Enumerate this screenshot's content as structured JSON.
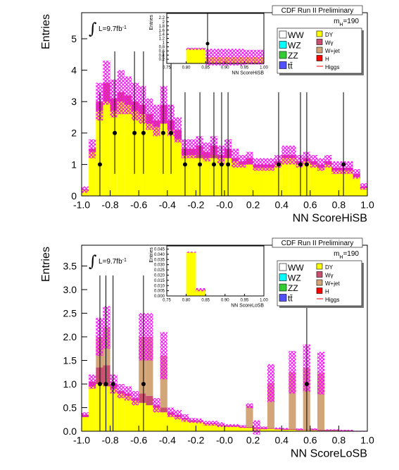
{
  "chart_data": [
    {
      "type": "histogram",
      "header": "CDF Run II Preliminary",
      "mass_label": {
        "base": "m",
        "sub": "H",
        "rest": "=190"
      },
      "lumi_symbol": "∫",
      "lumi_label": {
        "base": "L=9.7fb",
        "sup": "-1"
      },
      "xlabel": "NN ScoreHiSB",
      "ylabel": "Entries",
      "legend": "upper right",
      "xlim": [
        -1,
        1
      ],
      "ylim": [
        0,
        5.83
      ],
      "xticks": [
        {
          "value": -1,
          "label": "-1.0"
        },
        -0.8,
        -0.6,
        -0.4,
        -0.2,
        {
          "value": 0,
          "label": "-0.0"
        },
        0.2,
        0.4,
        0.6,
        0.8,
        {
          "value": 1,
          "label": "1.0"
        }
      ],
      "yticks": [
        0,
        1,
        2,
        3,
        4,
        5
      ],
      "bins": [
        -1,
        -0.95,
        -0.9,
        -0.85,
        -0.8,
        -0.75,
        -0.7,
        -0.65,
        -0.6,
        -0.55,
        -0.5,
        -0.45,
        -0.4,
        -0.35,
        -0.3,
        -0.25,
        -0.2,
        -0.15,
        -0.1,
        -0.05,
        0,
        0.05,
        0.1,
        0.15,
        0.2,
        0.25,
        0.3,
        0.35,
        0.4,
        0.45,
        0.5,
        0.55,
        0.6,
        0.65,
        0.7,
        0.75,
        0.8,
        0.85,
        0.9,
        0.95,
        1
      ],
      "series": [
        {
          "name": "WW",
          "color": "#ffffff"
        },
        {
          "name": "WZ",
          "color": "#00ffff"
        },
        {
          "name": "ZZ",
          "color": "#33cc33"
        },
        {
          "name": "tt̄",
          "color": "#5050ff"
        },
        {
          "name": "DY",
          "color": "#ffff00",
          "values": [
            0.18,
            1.4,
            2.7,
            3.0,
            2.7,
            3.0,
            2.9,
            2.7,
            2.6,
            2.3,
            2.2,
            2.3,
            2.1,
            1.8,
            1.3,
            1.3,
            1.2,
            1.2,
            1.2,
            1.2,
            1.2,
            1.1,
            1.0,
            1.0,
            0.9,
            0.9,
            0.9,
            1.0,
            1.2,
            1.2,
            1.0,
            1.1,
            1.0,
            0.9,
            1.0,
            0.8,
            0.8,
            0.8,
            0.6,
            0.25
          ]
        },
        {
          "name": "Wγ",
          "color": "#c8506e",
          "values": [
            0.02,
            0.1,
            0.3,
            0.6,
            0.4,
            0.3,
            0.3,
            0.3,
            0.3,
            0.3,
            0.2,
            0.6,
            0.3,
            0.3,
            0.2,
            0.2,
            0.4,
            0.2,
            0.4,
            0.1,
            0.3,
            0.1,
            0.1,
            0.2,
            0.1,
            0.1,
            0.1,
            0.1,
            0.1,
            0.1,
            0.1,
            0.1,
            0.1,
            0.1,
            0.1,
            0.1,
            0.1,
            0.1,
            0.1,
            0.05
          ]
        },
        {
          "name": "W+jet",
          "color": "#d2a679"
        },
        {
          "name": "H",
          "color": "#ff0000"
        },
        {
          "name": "Higgs",
          "color": "#ff0000",
          "style": "line"
        }
      ],
      "band": {
        "color": "#ff00ff",
        "values": [
          0.1,
          0.3,
          0.6,
          0.7,
          0.6,
          0.7,
          0.6,
          0.6,
          0.6,
          0.5,
          0.5,
          0.6,
          0.5,
          0.4,
          0.3,
          0.3,
          0.3,
          0.3,
          0.3,
          0.3,
          0.3,
          0.3,
          0.2,
          0.2,
          0.2,
          0.2,
          0.2,
          0.2,
          0.3,
          0.3,
          0.2,
          0.2,
          0.2,
          0.2,
          0.2,
          0.2,
          0.2,
          0.2,
          0.15,
          0.1
        ]
      },
      "points": {
        "x": [
          -0.872,
          -0.768,
          -0.63,
          -0.567,
          -0.429,
          -0.374,
          -0.276,
          -0.172,
          -0.074,
          -0.02,
          0.025,
          0.379,
          0.532,
          0.576,
          0.833
        ],
        "y": [
          1,
          2,
          2,
          2,
          2,
          2,
          1,
          1,
          1,
          1,
          1,
          1,
          1,
          1,
          1
        ],
        "err_low": [
          1,
          1.3,
          1.3,
          1.3,
          1.3,
          1.3,
          1,
          1,
          1,
          1,
          1,
          1,
          1,
          1,
          1
        ],
        "err_high": [
          2.3,
          2.6,
          2.6,
          2.6,
          2.6,
          2.6,
          2.3,
          2.3,
          2.3,
          2.3,
          2.3,
          2.3,
          2.3,
          2.3,
          2.3
        ]
      },
      "inset": {
        "type": "histogram",
        "xlabel": "NN ScoreHiSB",
        "ylabel": "Entries",
        "xlim": [
          0.75,
          1
        ],
        "ylim": [
          0,
          2.4
        ],
        "xticks": [
          0.75,
          {
            "value": 0.8,
            "label": "0.80"
          },
          0.85,
          {
            "value": 0.9,
            "label": "0.90"
          },
          0.95,
          {
            "value": 1,
            "label": "1.00"
          }
        ],
        "yticks": [
          0.2,
          0.4,
          0.6,
          0.8,
          1,
          1.2,
          1.4,
          1.6,
          1.8,
          2,
          2.2
        ],
        "bins": [
          0.75,
          0.8,
          0.85,
          0.9,
          0.95,
          1
        ],
        "series": [
          {
            "color": "#ffff00",
            "values": [
              0,
              0.7,
              0.3,
              0.3,
              0.3
            ]
          }
        ],
        "band": {
          "color": "#ff00ff",
          "values": [
            0,
            0.05,
            0.4,
            0.4,
            0.35
          ]
        },
        "points": {
          "x": [
            0.855
          ],
          "y": [
            0.95
          ],
          "err_low": [
            0.95
          ],
          "err_high": [
            1.45
          ]
        }
      }
    },
    {
      "type": "histogram",
      "header": "CDF Run II Preliminary",
      "mass_label": {
        "base": "m",
        "sub": "H",
        "rest": "=190"
      },
      "lumi_symbol": "∫",
      "lumi_label": {
        "base": "L=9.7fb",
        "sup": "-1"
      },
      "xlabel": "NN ScoreLoSB",
      "ylabel": "Entries",
      "legend": "upper right",
      "xlim": [
        -1,
        1
      ],
      "ylim": [
        0,
        3.94
      ],
      "xticks": [
        {
          "value": -1,
          "label": "-1.0"
        },
        -0.8,
        -0.6,
        -0.4,
        -0.2,
        {
          "value": 0,
          "label": "-0.0"
        },
        0.2,
        0.4,
        0.6,
        0.8,
        {
          "value": 1,
          "label": "1.0"
        }
      ],
      "yticks": [
        {
          "value": 0,
          "label": "0.0"
        },
        0.5,
        {
          "value": 1,
          "label": "1.0"
        },
        1.5,
        {
          "value": 2,
          "label": "2.0"
        },
        2.5,
        {
          "value": 3,
          "label": "3.0"
        },
        3.5
      ],
      "bins": [
        -1,
        -0.95,
        -0.9,
        -0.85,
        -0.8,
        -0.75,
        -0.7,
        -0.65,
        -0.6,
        -0.55,
        -0.5,
        -0.45,
        -0.4,
        -0.35,
        -0.3,
        -0.25,
        -0.2,
        -0.15,
        -0.1,
        -0.05,
        0,
        0.05,
        0.1,
        0.15,
        0.2,
        0.25,
        0.3,
        0.35,
        0.4,
        0.45,
        0.5,
        0.55,
        0.6,
        0.65,
        0.7,
        0.75,
        0.8,
        0.85,
        0.9,
        0.95,
        1
      ],
      "series": [
        {
          "name": "WW",
          "color": "#ffffff"
        },
        {
          "name": "WZ",
          "color": "#00ffff"
        },
        {
          "name": "ZZ",
          "color": "#33cc33"
        },
        {
          "name": "tt̄",
          "color": "#5050ff"
        },
        {
          "name": "DY",
          "color": "#ffff00",
          "values": [
            0.3,
            0.95,
            1.0,
            0.95,
            0.9,
            0.8,
            0.75,
            0.65,
            0.6,
            0.55,
            0.5,
            0.4,
            0.35,
            0.3,
            0.25,
            0.2,
            0.2,
            0.15,
            0.15,
            0.12,
            0.1,
            0.1,
            0.08,
            0.07,
            0.06,
            0.05,
            0.05,
            0.04,
            0.03,
            0.03,
            0.02,
            0.02,
            0.02,
            0.01,
            0.01,
            0.01,
            0.01,
            0.01,
            0,
            0
          ]
        },
        {
          "name": "Wγ",
          "color": "#c8506e",
          "values": [
            0.05,
            0.1,
            0.35,
            0.45,
            0.1,
            0.05,
            0.05,
            0.05,
            0.2,
            0.2,
            0.05,
            0.1,
            0.05,
            0.05,
            0.03,
            0.03,
            0.02,
            0.02,
            0.02,
            0.02,
            0.02,
            0.02,
            0.02,
            0.02,
            0.02,
            0.02,
            0.02,
            0.02,
            0.02,
            0.02,
            0.02,
            0.02,
            0.02,
            0.02,
            0.02,
            0.02,
            0.01,
            0.01,
            0,
            0
          ]
        },
        {
          "name": "W+jet",
          "color": "#d2a679",
          "values": [
            0,
            0,
            0.65,
            0.8,
            0,
            0,
            0,
            0,
            1.2,
            1.25,
            0,
            1.1,
            0,
            0,
            0,
            0,
            0,
            0,
            0,
            0,
            0,
            0,
            0,
            0.45,
            0,
            0,
            0.95,
            0,
            0,
            1.2,
            0,
            1.3,
            0,
            1.2,
            0,
            0,
            0,
            0,
            0,
            0
          ]
        },
        {
          "name": "H",
          "color": "#ff0000"
        },
        {
          "name": "Higgs",
          "color": "#ff0000",
          "style": "line"
        }
      ],
      "band": {
        "color": "#ff00ff",
        "values": [
          0.05,
          0.15,
          0.4,
          0.45,
          0.2,
          0.15,
          0.15,
          0.15,
          0.5,
          0.5,
          0.15,
          0.5,
          0.1,
          0.1,
          0.08,
          0.05,
          0.05,
          0.05,
          0.05,
          0.05,
          0.03,
          0.03,
          0.03,
          0.05,
          0.15,
          0.03,
          0.4,
          0.02,
          0.02,
          0.45,
          0.02,
          0.5,
          0.02,
          0.45,
          0.01,
          0.01,
          0.01,
          0.01,
          0.01,
          0.01
        ]
      },
      "points": {
        "x": [
          -0.872,
          -0.83,
          -0.78,
          -0.567,
          0.576
        ],
        "y": [
          1,
          1,
          1,
          1,
          1
        ],
        "err_low": [
          1,
          1,
          1,
          1,
          1
        ],
        "err_high": [
          2.3,
          2.3,
          2.3,
          2.3,
          2.3
        ]
      },
      "inset": {
        "type": "histogram",
        "xlabel": "NN ScoreLoSB",
        "ylabel": "Entries",
        "xlim": [
          0.75,
          1
        ],
        "ylim": [
          0,
          0.048
        ],
        "xticks": [
          0.75,
          {
            "value": 0.8,
            "label": "0.80"
          },
          0.85,
          {
            "value": 0.9,
            "label": "0.90"
          },
          0.95,
          {
            "value": 1,
            "label": "1.00"
          }
        ],
        "yticks": [
          {
            "value": 0,
            "label": "0.000"
          },
          0.005,
          {
            "value": 0.01,
            "label": "0.010"
          },
          0.015,
          {
            "value": 0.02,
            "label": "0.020"
          },
          0.025,
          {
            "value": 0.03,
            "label": "0.030"
          },
          0.035,
          {
            "value": 0.04,
            "label": "0.040"
          },
          0.045
        ],
        "bins": [
          0.75,
          0.8,
          0.825,
          0.85,
          0.9,
          1
        ],
        "series": [
          {
            "color": "#ffff00",
            "values": [
              0,
              0.042,
              0.006,
              0,
              0
            ]
          }
        ],
        "band": {
          "color": "#ff00ff",
          "values": [
            0,
            0.0005,
            0.0015,
            0.0003,
            0
          ]
        }
      }
    }
  ]
}
